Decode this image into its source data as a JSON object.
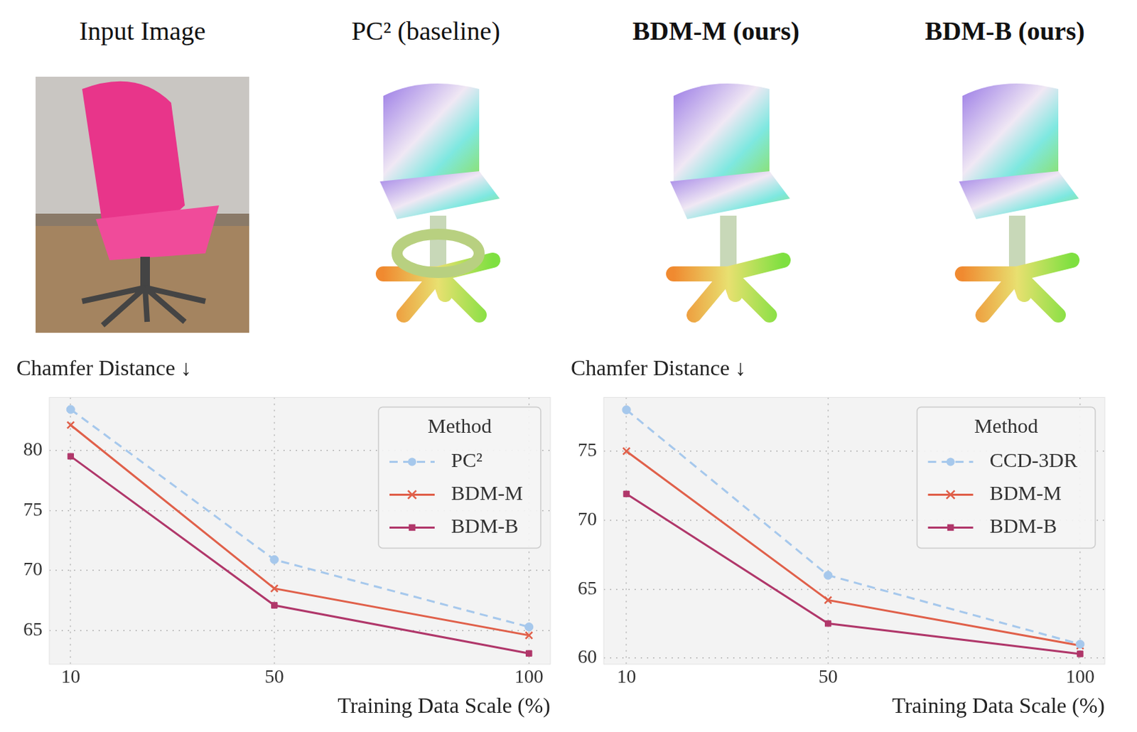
{
  "header": {
    "titles": [
      "Input Image",
      "PC² (baseline)",
      "BDM-M (ours)",
      "BDM-B (ours)"
    ]
  },
  "chart_data": [
    {
      "type": "line",
      "ylabel": "Chamfer Distance ↓",
      "xlabel": "Training Data Scale (%)",
      "legend_title": "Method",
      "legend": "upper right",
      "grid": true,
      "x": [
        10,
        50,
        100
      ],
      "xlim": [
        5.8,
        104.2
      ],
      "xticks": [
        10,
        50,
        100
      ],
      "ylim": [
        62.2,
        84.4
      ],
      "yticks": [
        65,
        70,
        75,
        80
      ],
      "series": [
        {
          "name": "PC²",
          "color": "#a6c8ec",
          "marker": "circle",
          "line_style": "dashed",
          "values": [
            83.4,
            70.9,
            65.3
          ]
        },
        {
          "name": "BDM-M",
          "color": "#e0604a",
          "marker": "x",
          "line_style": "solid",
          "values": [
            82.1,
            68.5,
            64.6
          ]
        },
        {
          "name": "BDM-B",
          "color": "#b0376a",
          "marker": "square",
          "line_style": "solid",
          "values": [
            79.5,
            67.1,
            63.1
          ]
        }
      ]
    },
    {
      "type": "line",
      "ylabel": "Chamfer Distance ↓",
      "xlabel": "Training Data Scale (%)",
      "legend_title": "Method",
      "legend": "upper right",
      "grid": true,
      "x": [
        10,
        50,
        100
      ],
      "xlim": [
        5.5,
        104.9
      ],
      "xticks": [
        10,
        50,
        100
      ],
      "ylim": [
        59.55,
        78.9
      ],
      "yticks": [
        60,
        65,
        70,
        75
      ],
      "series": [
        {
          "name": "CCD-3DR",
          "color": "#a6c8ec",
          "marker": "circle",
          "line_style": "dashed",
          "values": [
            78.0,
            66.0,
            61.0
          ]
        },
        {
          "name": "BDM-M",
          "color": "#e0604a",
          "marker": "x",
          "line_style": "solid",
          "values": [
            75.0,
            64.2,
            60.9
          ]
        },
        {
          "name": "BDM-B",
          "color": "#b0376a",
          "marker": "square",
          "line_style": "solid",
          "values": [
            71.9,
            62.5,
            60.3
          ]
        }
      ]
    }
  ]
}
